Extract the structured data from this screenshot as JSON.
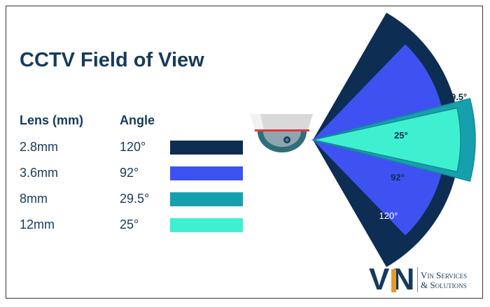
{
  "title": "CCTV Field of View",
  "table": {
    "headers": {
      "lens": "Lens (mm)",
      "angle": "Angle"
    },
    "rows": [
      {
        "lens": "2.8mm",
        "angle": "120°",
        "color": "#0e2d52"
      },
      {
        "lens": "3.6mm",
        "angle": "92°",
        "color": "#3e52f2"
      },
      {
        "lens": "8mm",
        "angle": "29.5°",
        "color": "#16a0ae"
      },
      {
        "lens": "12mm",
        "angle": "25°",
        "color": "#3ff0d0"
      }
    ]
  },
  "diagram": {
    "wedges": [
      {
        "angle_deg": 120,
        "label": "120°",
        "color": "#0e2d52",
        "label_color": "#ffffff"
      },
      {
        "angle_deg": 92,
        "label": "92°",
        "color": "#3e52f2",
        "label_color": "#0e2d52"
      },
      {
        "angle_deg": 29.5,
        "label": "29.5°",
        "color": "#16a0ae",
        "label_color": "#0e2d52"
      },
      {
        "angle_deg": 25,
        "label": "25°",
        "color": "#3ff0d0",
        "label_color": "#0e2d52"
      }
    ]
  },
  "logo": {
    "mark": "VN",
    "line1": "Vin Services",
    "line2": "& Solutions",
    "accent": "#e39b2d"
  }
}
